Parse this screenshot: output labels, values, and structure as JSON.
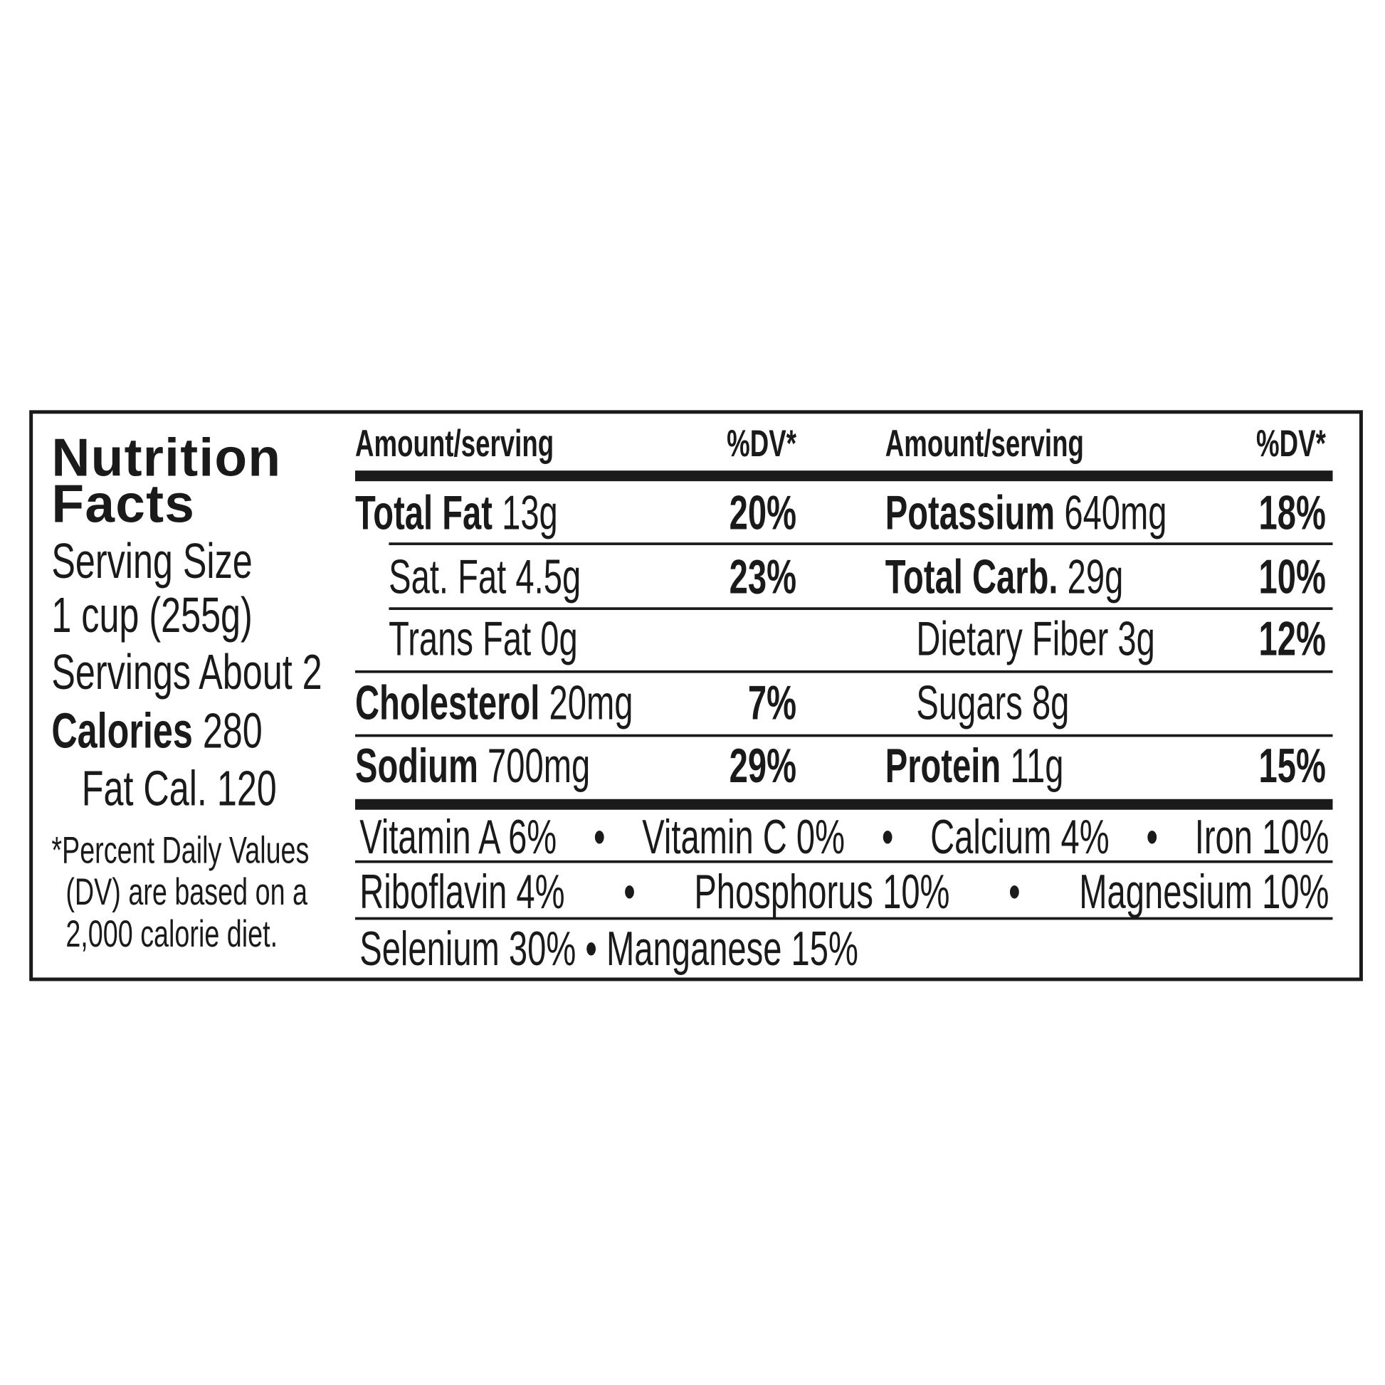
{
  "label": {
    "title_line1": "Nutrition",
    "title_line2": "Facts",
    "serving_size_label": "Serving Size",
    "serving_size_value": "1 cup (255g)",
    "servings": "Servings About 2",
    "calories_label": "Calories",
    "calories_value": "280",
    "fat_calories": "Fat Cal. 120",
    "footnote": [
      "*Percent Daily Values",
      "(DV) are based on a",
      "2,000 calorie diet."
    ],
    "header": {
      "amount": "Amount/serving",
      "dv": "%DV*"
    },
    "left_rows": [
      {
        "name": "Total Fat",
        "amount": "13g",
        "dv": "20%"
      },
      {
        "name": "Sat. Fat",
        "amount": "4.5g",
        "dv": "23%"
      },
      {
        "name": "Trans Fat",
        "amount": "0g",
        "dv": ""
      },
      {
        "name": "Cholesterol",
        "amount": "20mg",
        "dv": "7%"
      },
      {
        "name": "Sodium",
        "amount": "700mg",
        "dv": "29%"
      }
    ],
    "right_rows": [
      {
        "name": "Potassium",
        "amount": "640mg",
        "dv": "18%"
      },
      {
        "name": "Total Carb.",
        "amount": "29g",
        "dv": "10%"
      },
      {
        "name": "Dietary Fiber",
        "amount": "3g",
        "dv": "12%"
      },
      {
        "name": "Sugars",
        "amount": "8g",
        "dv": ""
      },
      {
        "name": "Protein",
        "amount": "11g",
        "dv": "15%"
      }
    ],
    "vitamins": [
      [
        "Vitamin A 6%",
        "•",
        "Vitamin C 0%",
        "•",
        "Calcium 4%",
        "•",
        "Iron 10%"
      ],
      [
        "Riboflavin 4%",
        "•",
        "Phosphorus 10%",
        "•",
        "Magnesium 10%"
      ],
      [
        "Selenium 30% • Manganese 15%"
      ]
    ]
  }
}
